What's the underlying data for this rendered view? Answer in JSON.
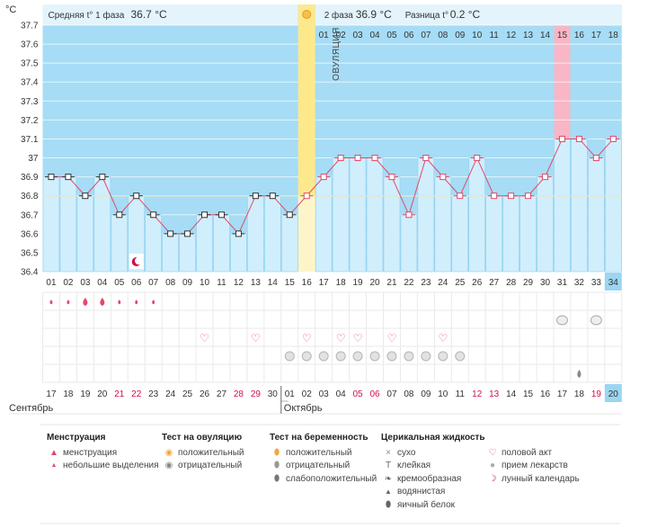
{
  "colors": {
    "phase_bg": "#a6dcf5",
    "grid_line": "#ffffff",
    "phase_label_bg": "#e4f4fc",
    "ovulation": "#fde98c",
    "ovulation_light": "#fdf5c8",
    "bar_fill": "#d1eefc",
    "bar_stroke": "#8ed0f0",
    "line": "#e04a6a",
    "marker_phase1": "#333333",
    "marker_phase2": "#e04a6a",
    "avg_line": "#f5e7a0",
    "highlight_col": "#f8b6c6",
    "today_cell": "#9ad6f2",
    "table_grid": "#eaeaea",
    "weekend_text": "#d0104a"
  },
  "header": {
    "unit": "°C",
    "phase1_label": "Средняя t° 1 фаза",
    "phase1_value": "36.7 °C",
    "phase2_label": "2 фаза",
    "phase2_value": "36.9 °C",
    "diff_label": "Разница t°",
    "diff_value": "0.2 °C"
  },
  "ovulation_label": "ОВУЛЯЦИЯ",
  "chart_data": {
    "type": "line",
    "x": [
      "01",
      "02",
      "03",
      "04",
      "05",
      "06",
      "07",
      "08",
      "09",
      "10",
      "11",
      "12",
      "13",
      "14",
      "15",
      "16",
      "17",
      "18",
      "19",
      "20",
      "21",
      "22",
      "23",
      "24",
      "25",
      "26",
      "27",
      "28",
      "29",
      "30",
      "31",
      "32",
      "33",
      "34"
    ],
    "y": [
      36.9,
      36.9,
      36.8,
      36.9,
      36.7,
      36.8,
      36.7,
      36.6,
      36.6,
      36.7,
      36.7,
      36.6,
      36.8,
      36.8,
      36.7,
      36.8,
      36.9,
      37.0,
      37.0,
      37.0,
      36.9,
      36.7,
      37.0,
      36.9,
      36.8,
      37.0,
      36.8,
      36.8,
      36.8,
      36.9,
      37.1,
      37.1,
      37.0,
      37.1
    ],
    "yticks": [
      "36.4",
      "36.5",
      "36.6",
      "36.7",
      "36.8",
      "36.9",
      "37",
      "37.1",
      "37.2",
      "37.3",
      "37.4",
      "37.5",
      "37.6",
      "37.7"
    ],
    "ylim": [
      36.4,
      37.7
    ],
    "ovulation_day": 16,
    "average_line": 36.8,
    "phase2_days": [
      "01",
      "02",
      "03",
      "04",
      "05",
      "06",
      "07",
      "08",
      "09",
      "10",
      "11",
      "12",
      "13",
      "14",
      "15",
      "16",
      "17",
      "18"
    ],
    "highlight_phase2_day": 15,
    "current_day": 34,
    "calendar_dates": [
      "17",
      "18",
      "19",
      "20",
      "21",
      "22",
      "23",
      "24",
      "25",
      "26",
      "27",
      "28",
      "29",
      "30",
      "01",
      "02",
      "03",
      "04",
      "05",
      "06",
      "07",
      "08",
      "09",
      "10",
      "11",
      "12",
      "13",
      "14",
      "15",
      "16",
      "17",
      "18",
      "19",
      "20"
    ],
    "weekend_dates_idx": [
      4,
      5,
      11,
      12,
      18,
      19,
      25,
      26,
      32
    ],
    "month1": "Сентябрь",
    "month2": "Октябрь",
    "menstruation_days": [
      1,
      2,
      3,
      4,
      5,
      6,
      7
    ],
    "menstruation_heavy_days": [
      3,
      4
    ],
    "lunar_day": 6,
    "pregnancy_test_neg_days": [
      31,
      33
    ],
    "intercourse_days": [
      10,
      13,
      16,
      18,
      19,
      21,
      24
    ],
    "medicine_days": [
      15,
      16,
      17,
      18,
      19,
      20,
      21,
      22,
      23,
      24,
      25
    ],
    "cervical_fluid_days": [
      32
    ]
  },
  "legend": {
    "menstruation": {
      "title": "Менструация",
      "items": [
        "менструация",
        "небольшие выделения"
      ]
    },
    "ovulation_test": {
      "title": "Тест на овуляцию",
      "items": [
        "положительный",
        "отрицательный"
      ]
    },
    "pregnancy_test": {
      "title": "Тест на беременность",
      "items": [
        "положительный",
        "отрицательный",
        "слабоположительный"
      ]
    },
    "cervical": {
      "title": "Церикальная жидкость",
      "items": [
        "сухо",
        "клейкая",
        "кремообразная",
        "водянистая",
        "яичный белок"
      ]
    },
    "other": {
      "items": [
        "половой акт",
        "прием лекарств",
        "лунный календарь"
      ]
    }
  }
}
